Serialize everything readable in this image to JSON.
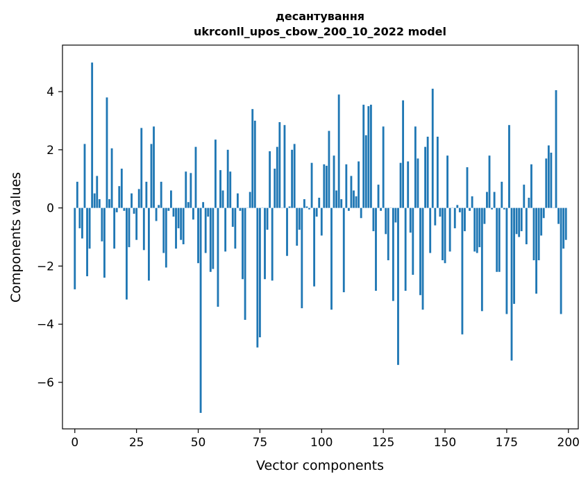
{
  "chart_data": {
    "type": "bar",
    "title": "десантування",
    "subtitle": "ukrconll_upos_cbow_200_10_2022 model",
    "xlabel": "Vector components",
    "ylabel": "Components values",
    "xlim": [
      -5,
      204
    ],
    "ylim": [
      -7.6,
      5.6
    ],
    "xticks": [
      0,
      25,
      50,
      75,
      100,
      125,
      150,
      175,
      200
    ],
    "yticks": [
      -6,
      -4,
      -2,
      0,
      2,
      4
    ],
    "bar_color": "#1f77b4",
    "grid": false,
    "legend": "none",
    "x": [
      0,
      1,
      2,
      3,
      4,
      5,
      6,
      7,
      8,
      9,
      10,
      11,
      12,
      13,
      14,
      15,
      16,
      17,
      18,
      19,
      20,
      21,
      22,
      23,
      24,
      25,
      26,
      27,
      28,
      29,
      30,
      31,
      32,
      33,
      34,
      35,
      36,
      37,
      38,
      39,
      40,
      41,
      42,
      43,
      44,
      45,
      46,
      47,
      48,
      49,
      50,
      51,
      52,
      53,
      54,
      55,
      56,
      57,
      58,
      59,
      60,
      61,
      62,
      63,
      64,
      65,
      66,
      67,
      68,
      69,
      70,
      71,
      72,
      73,
      74,
      75,
      76,
      77,
      78,
      79,
      80,
      81,
      82,
      83,
      84,
      85,
      86,
      87,
      88,
      89,
      90,
      91,
      92,
      93,
      94,
      95,
      96,
      97,
      98,
      99,
      100,
      101,
      102,
      103,
      104,
      105,
      106,
      107,
      108,
      109,
      110,
      111,
      112,
      113,
      114,
      115,
      116,
      117,
      118,
      119,
      120,
      121,
      122,
      123,
      124,
      125,
      126,
      127,
      128,
      129,
      130,
      131,
      132,
      133,
      134,
      135,
      136,
      137,
      138,
      139,
      140,
      141,
      142,
      143,
      144,
      145,
      146,
      147,
      148,
      149,
      150,
      151,
      152,
      153,
      154,
      155,
      156,
      157,
      158,
      159,
      160,
      161,
      162,
      163,
      164,
      165,
      166,
      167,
      168,
      169,
      170,
      171,
      172,
      173,
      174,
      175,
      176,
      177,
      178,
      179,
      180,
      181,
      182,
      183,
      184,
      185,
      186,
      187,
      188,
      189,
      190,
      191,
      192,
      193,
      194,
      195,
      196,
      197,
      198,
      199
    ],
    "values": [
      -2.8,
      0.9,
      -0.7,
      -1.05,
      2.2,
      -2.35,
      -1.4,
      5.0,
      0.5,
      1.1,
      0.3,
      -1.15,
      -2.4,
      3.8,
      0.3,
      2.05,
      -1.4,
      -0.15,
      0.75,
      1.35,
      -0.1,
      -3.15,
      -1.35,
      0.5,
      -0.2,
      -1.1,
      0.65,
      2.75,
      -1.45,
      0.9,
      -2.5,
      2.2,
      2.8,
      -0.45,
      0.1,
      0.9,
      -1.55,
      -2.05,
      -0.1,
      0.6,
      -0.3,
      -1.4,
      -0.7,
      -1.1,
      -1.25,
      1.25,
      0.2,
      1.2,
      -0.4,
      2.1,
      -1.9,
      -7.05,
      0.2,
      -1.55,
      -0.3,
      -2.2,
      -2.1,
      2.35,
      -3.4,
      1.3,
      0.6,
      -1.5,
      2.0,
      1.25,
      -0.65,
      -1.4,
      0.5,
      -0.1,
      -2.45,
      -3.85,
      0.0,
      0.55,
      3.4,
      3.0,
      -4.8,
      -4.45,
      0.0,
      -2.45,
      -0.75,
      1.95,
      -2.5,
      1.35,
      2.1,
      2.95,
      0.0,
      2.85,
      -1.65,
      0.05,
      2.0,
      2.2,
      -1.3,
      -0.75,
      -3.45,
      0.3,
      0.05,
      -0.05,
      1.55,
      -2.7,
      -0.3,
      0.35,
      -0.95,
      1.5,
      1.45,
      2.65,
      -3.5,
      1.8,
      0.6,
      3.9,
      0.3,
      -2.9,
      1.5,
      -0.1,
      1.1,
      0.6,
      0.4,
      1.6,
      -0.35,
      3.55,
      2.5,
      3.5,
      3.55,
      -0.8,
      -2.85,
      0.8,
      -0.1,
      2.8,
      -0.9,
      -1.8,
      0.0,
      -3.2,
      -0.5,
      -5.4,
      1.55,
      3.7,
      -2.85,
      1.6,
      -0.85,
      -2.3,
      2.8,
      1.7,
      -3.0,
      -3.5,
      2.1,
      2.45,
      -1.55,
      4.1,
      -0.6,
      2.45,
      -0.3,
      -1.8,
      -1.9,
      1.8,
      -1.5,
      0.0,
      -0.7,
      0.1,
      -0.15,
      -4.35,
      -0.8,
      1.4,
      -0.1,
      0.4,
      -1.5,
      -1.55,
      -1.35,
      -3.55,
      -0.55,
      0.55,
      1.8,
      -0.05,
      0.55,
      -2.2,
      -2.2,
      0.9,
      -0.05,
      -3.65,
      2.85,
      -5.25,
      -3.3,
      -0.9,
      -1.0,
      -0.8,
      0.8,
      -1.25,
      0.35,
      1.5,
      -1.8,
      -2.95,
      -1.8,
      -0.95,
      -0.35,
      1.7,
      2.15,
      1.9,
      0.0,
      4.05,
      -0.55,
      -3.65,
      -1.4,
      -1.1
    ]
  }
}
